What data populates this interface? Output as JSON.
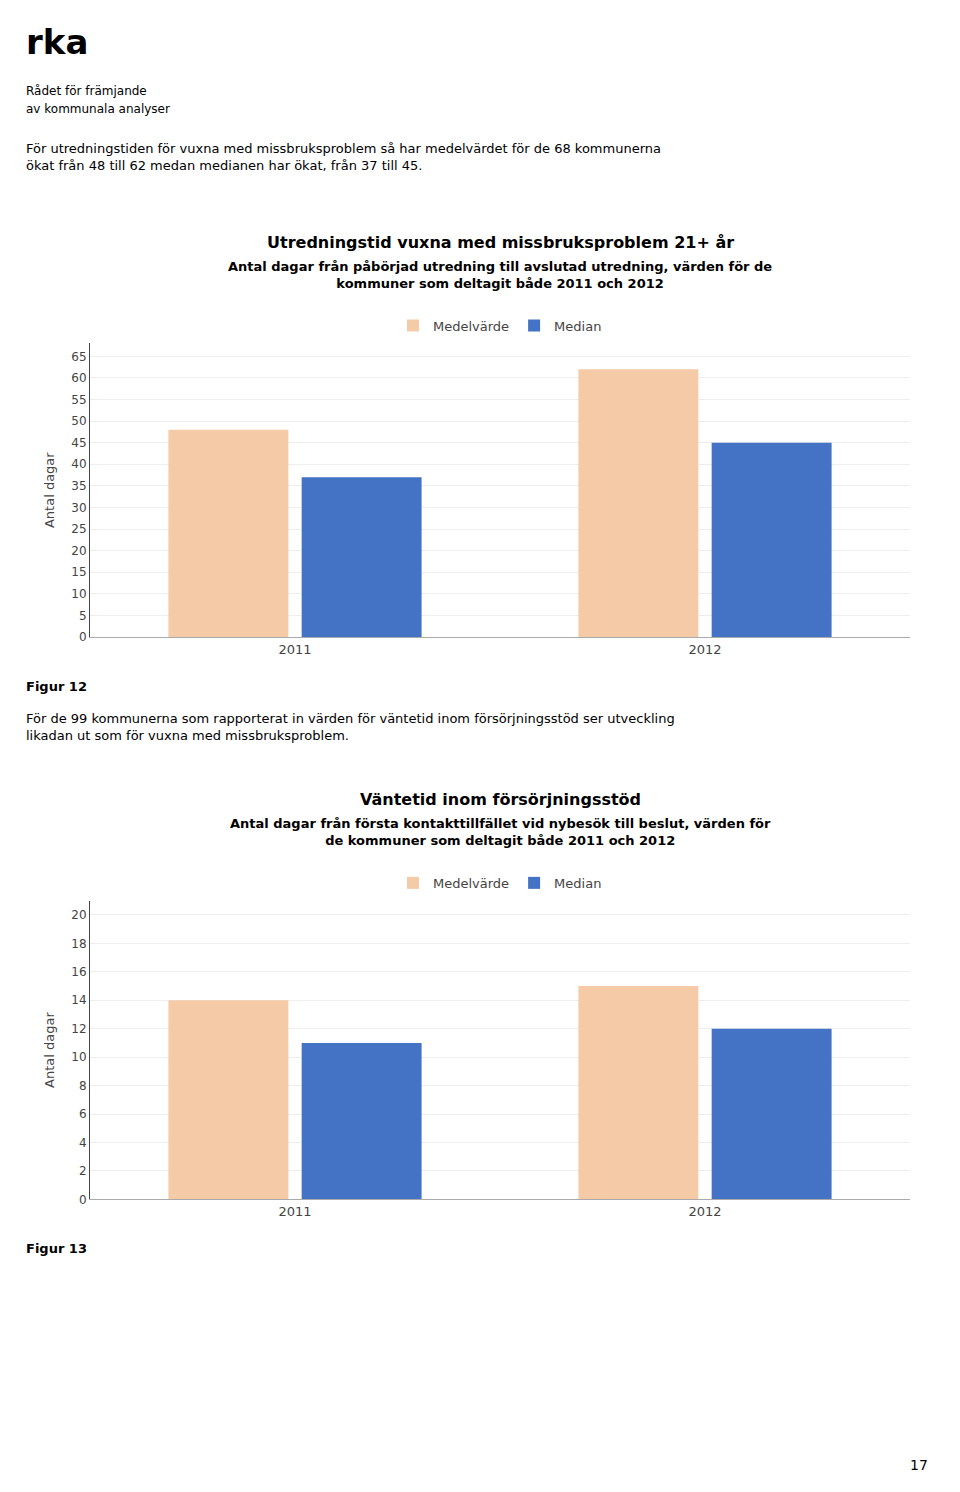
{
  "chart_data": [
    {
      "type": "bar",
      "title": "Utredningstid vuxna med missbruksproblem 21+ år",
      "subtitle": "Antal dagar från påbörjad utredning till avslutad utredning, värden för de\nkommuner som deltagit både 2011 och 2012",
      "ylabel": "Antal dagar",
      "categories": [
        "2011",
        "2012"
      ],
      "series": [
        {
          "name": "Medelvärde",
          "color": "#f5cba7",
          "values": [
            48,
            62
          ]
        },
        {
          "name": "Median",
          "color": "#4472c4",
          "values": [
            37,
            45
          ]
        }
      ],
      "ylim": [
        0,
        68
      ],
      "yticks": [
        0,
        5,
        10,
        15,
        20,
        25,
        30,
        35,
        40,
        45,
        50,
        55,
        60,
        65
      ],
      "grid": true,
      "legend": "upper center",
      "annotations": [
        "rka",
        "Rådet för främjande",
        "av kommunala analyser",
        "För utredningstiden för vuxna med missbruksproblem så har medelvärdet för de 68 kommunerna\nökat från 48 till 62 medan medianen har ökat, från 37 till 45.",
        "Figur 12"
      ]
    },
    {
      "type": "bar",
      "title": "Väntetid inom försörjningsstöd",
      "subtitle": "Antal dagar från första kontakttillfället vid nybesök till beslut, värden för\nde kommuner som deltagit både 2011 och 2012",
      "ylabel": "Antal dagar",
      "categories": [
        "2011",
        "2012"
      ],
      "series": [
        {
          "name": "Medelvärde",
          "color": "#f5cba7",
          "values": [
            14,
            15
          ]
        },
        {
          "name": "Median",
          "color": "#4472c4",
          "values": [
            11,
            12
          ]
        }
      ],
      "ylim": [
        0,
        21
      ],
      "yticks": [
        0,
        2,
        4,
        6,
        8,
        10,
        12,
        14,
        16,
        18,
        20
      ],
      "grid": true,
      "legend": "upper center",
      "annotations": [
        "För de 99 kommunerna som rapporterat in värden för väntetid inom försörjningsstöd ser utveckling\nlikadan ut som för vuxna med missbruksproblem.",
        "Figur 13",
        "17"
      ]
    }
  ]
}
